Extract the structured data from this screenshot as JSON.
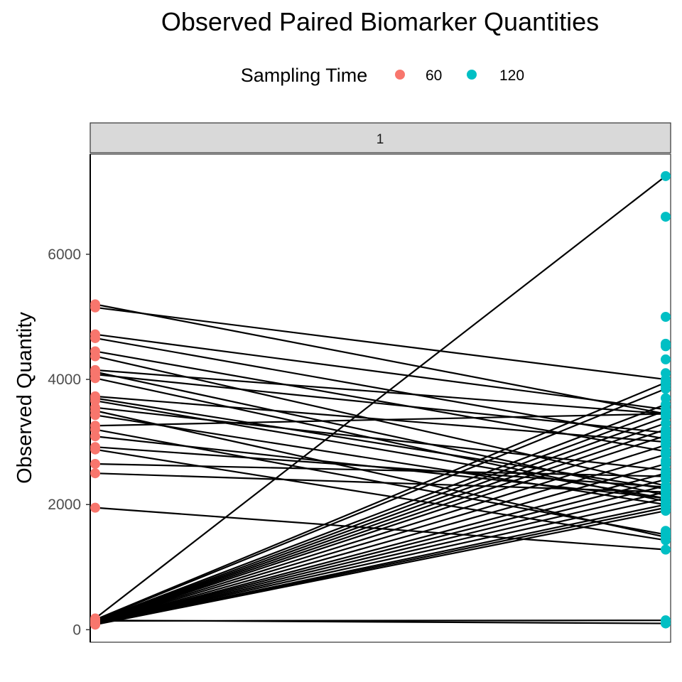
{
  "chart_data": {
    "type": "line",
    "title": "Observed Paired Biomarker Quantities",
    "legend": {
      "title": "Sampling Time",
      "position": "top",
      "entries": [
        {
          "label": "60",
          "color": "#F8766D"
        },
        {
          "label": "120",
          "color": "#00BFC4"
        }
      ]
    },
    "facet_label": "1",
    "xlabel": "",
    "ylabel": "Observed Quantity",
    "x_categories": [
      "60",
      "120"
    ],
    "ylim": [
      -200,
      7600
    ],
    "yticks": [
      0,
      2000,
      4000,
      6000
    ],
    "pairs": [
      [
        5200,
        3450
      ],
      [
        5150,
        4000
      ],
      [
        4720,
        3520
      ],
      [
        4660,
        3050
      ],
      [
        4450,
        2850
      ],
      [
        4370,
        2300
      ],
      [
        4150,
        3450
      ],
      [
        4120,
        2150
      ],
      [
        4080,
        3150
      ],
      [
        4020,
        2050
      ],
      [
        3730,
        3000
      ],
      [
        3700,
        2250
      ],
      [
        3660,
        2100
      ],
      [
        3550,
        2550
      ],
      [
        3500,
        1480
      ],
      [
        3430,
        2000
      ],
      [
        3260,
        3450
      ],
      [
        3200,
        1520
      ],
      [
        3090,
        2100
      ],
      [
        2920,
        2280
      ],
      [
        2880,
        1430
      ],
      [
        2650,
        2450
      ],
      [
        2500,
        2200
      ],
      [
        1950,
        1280
      ],
      [
        180,
        7250
      ],
      [
        160,
        3950
      ],
      [
        150,
        3850
      ],
      [
        140,
        3600
      ],
      [
        130,
        3500
      ],
      [
        125,
        3400
      ],
      [
        120,
        3300
      ],
      [
        115,
        3200
      ],
      [
        110,
        3100
      ],
      [
        108,
        2950
      ],
      [
        105,
        2800
      ],
      [
        100,
        2650
      ],
      [
        100,
        2500
      ],
      [
        98,
        2400
      ],
      [
        95,
        2300
      ],
      [
        92,
        2200
      ],
      [
        90,
        2100
      ],
      [
        88,
        2000
      ],
      [
        85,
        1950
      ],
      [
        80,
        1900
      ],
      [
        150,
        100
      ],
      [
        140,
        150
      ]
    ],
    "extra_points_120": [
      6600,
      5000,
      4570,
      4530,
      4320,
      3700,
      3900,
      4100,
      2700,
      1580,
      1550
    ]
  }
}
